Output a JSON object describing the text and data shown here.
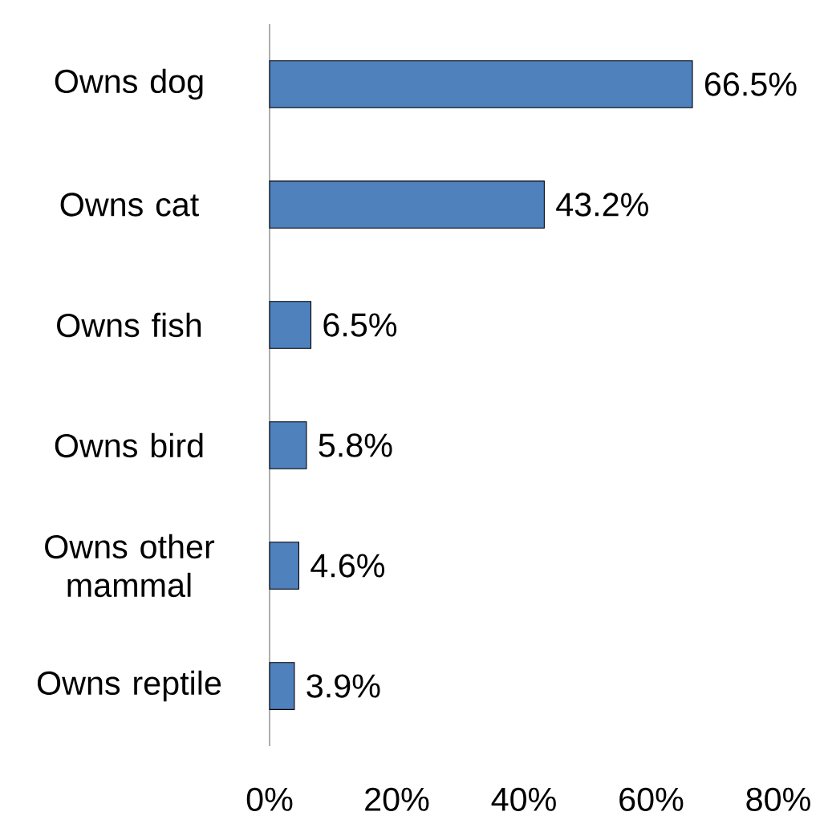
{
  "chart_data": {
    "type": "bar",
    "orientation": "horizontal",
    "categories": [
      "Owns dog",
      "Owns cat",
      "Owns fish",
      "Owns bird",
      "Owns other mammal",
      "Owns reptile"
    ],
    "values": [
      66.5,
      43.2,
      6.5,
      5.8,
      4.6,
      3.9
    ],
    "value_labels": [
      "66.5%",
      "43.2%",
      "6.5%",
      "5.8%",
      "4.6%",
      "3.9%"
    ],
    "color": "#4f81bd",
    "xlim": [
      0,
      80
    ],
    "xticks": [
      {
        "value": 0,
        "label": "0%"
      },
      {
        "value": 20,
        "label": "20%"
      },
      {
        "value": 40,
        "label": "40%"
      },
      {
        "value": 60,
        "label": "60%"
      },
      {
        "value": 80,
        "label": "80%"
      }
    ],
    "grid": false
  }
}
